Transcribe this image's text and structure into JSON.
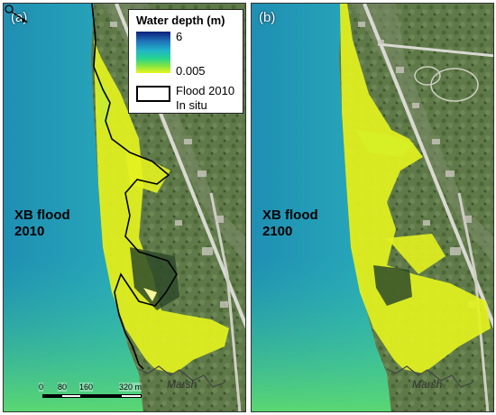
{
  "panels": [
    {
      "tag": "(a)",
      "flood_label": [
        "XB flood",
        "2010"
      ],
      "marsh": "Marsh"
    },
    {
      "tag": "(b)",
      "flood_label": [
        "XB flood",
        "2100"
      ],
      "marsh": "Marsh"
    }
  ],
  "legend": {
    "title": "Water depth (m)",
    "max": "6",
    "min": "0.005",
    "outline_label_line1": "Flood 2010",
    "outline_label_line2": "In situ"
  },
  "scalebar": {
    "ticks": [
      "0",
      "80",
      "160",
      "320 m"
    ]
  },
  "colors": {
    "deep_water": "#0a1f7a",
    "shallow_water": "#e9f51c",
    "sea": "#27a6b9",
    "land": "#5f7a48",
    "flood_outline": "#000000"
  },
  "icons": [
    "north-arrow-icon"
  ]
}
